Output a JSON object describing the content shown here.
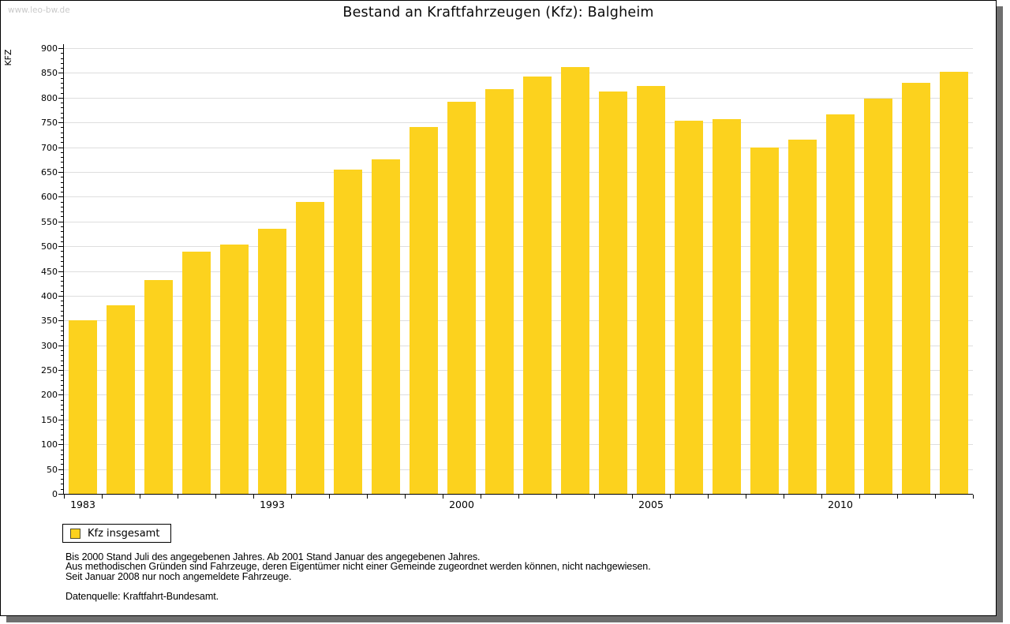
{
  "watermark": "www.leo-bw.de",
  "title": "Bestand an Kraftfahrzeugen (Kfz): Balgheim",
  "chart_data": {
    "type": "bar",
    "title": "Bestand an Kraftfahrzeugen (Kfz): Balgheim",
    "ylabel": "KFZ",
    "xlabel": "",
    "ylim": [
      0,
      900
    ],
    "y_major_step": 50,
    "y_minor_step": 10,
    "y_tick_labels": [
      "0",
      "50",
      "100",
      "150",
      "200",
      "250",
      "300",
      "350",
      "400",
      "450",
      "500",
      "550",
      "600",
      "650",
      "700",
      "750",
      "800",
      "850",
      "900"
    ],
    "grid": "horizontal",
    "legend_position": "bottom-left",
    "bar_count": 24,
    "x_tick_labels": [
      {
        "label": "1983",
        "bar_index": 0
      },
      {
        "label": "1993",
        "bar_index": 5
      },
      {
        "label": "2000",
        "bar_index": 10
      },
      {
        "label": "2005",
        "bar_index": 15
      },
      {
        "label": "2010",
        "bar_index": 20
      }
    ],
    "series": [
      {
        "name": "Kfz insgesamt",
        "color": "#fcd21e",
        "values": [
          350,
          380,
          431,
          489,
          503,
          535,
          590,
          654,
          676,
          741,
          791,
          817,
          842,
          861,
          812,
          823,
          754,
          756,
          700,
          716,
          766,
          798,
          830,
          852
        ]
      }
    ]
  },
  "legend": {
    "label": "Kfz insgesamt",
    "swatch_color": "#fcd21e",
    "swatch_border": "#56512b"
  },
  "footnotes": [
    "Bis 2000 Stand Juli des angegebenen Jahres. Ab 2001 Stand Januar des angegebenen Jahres.",
    "Aus methodischen Gründen sind Fahrzeuge, deren Eigentümer nicht einer Gemeinde zugeordnet werden können, nicht nachgewiesen.",
    "Seit Januar 2008 nur noch angemeldete Fahrzeuge."
  ],
  "source": "Datenquelle: Kraftfahrt-Bundesamt.",
  "colors": {
    "bar": "#fcd21e",
    "grid": "#dedede",
    "axis": "#000000",
    "watermark": "#c9c9c9",
    "shadow": "#6f6f6f"
  }
}
